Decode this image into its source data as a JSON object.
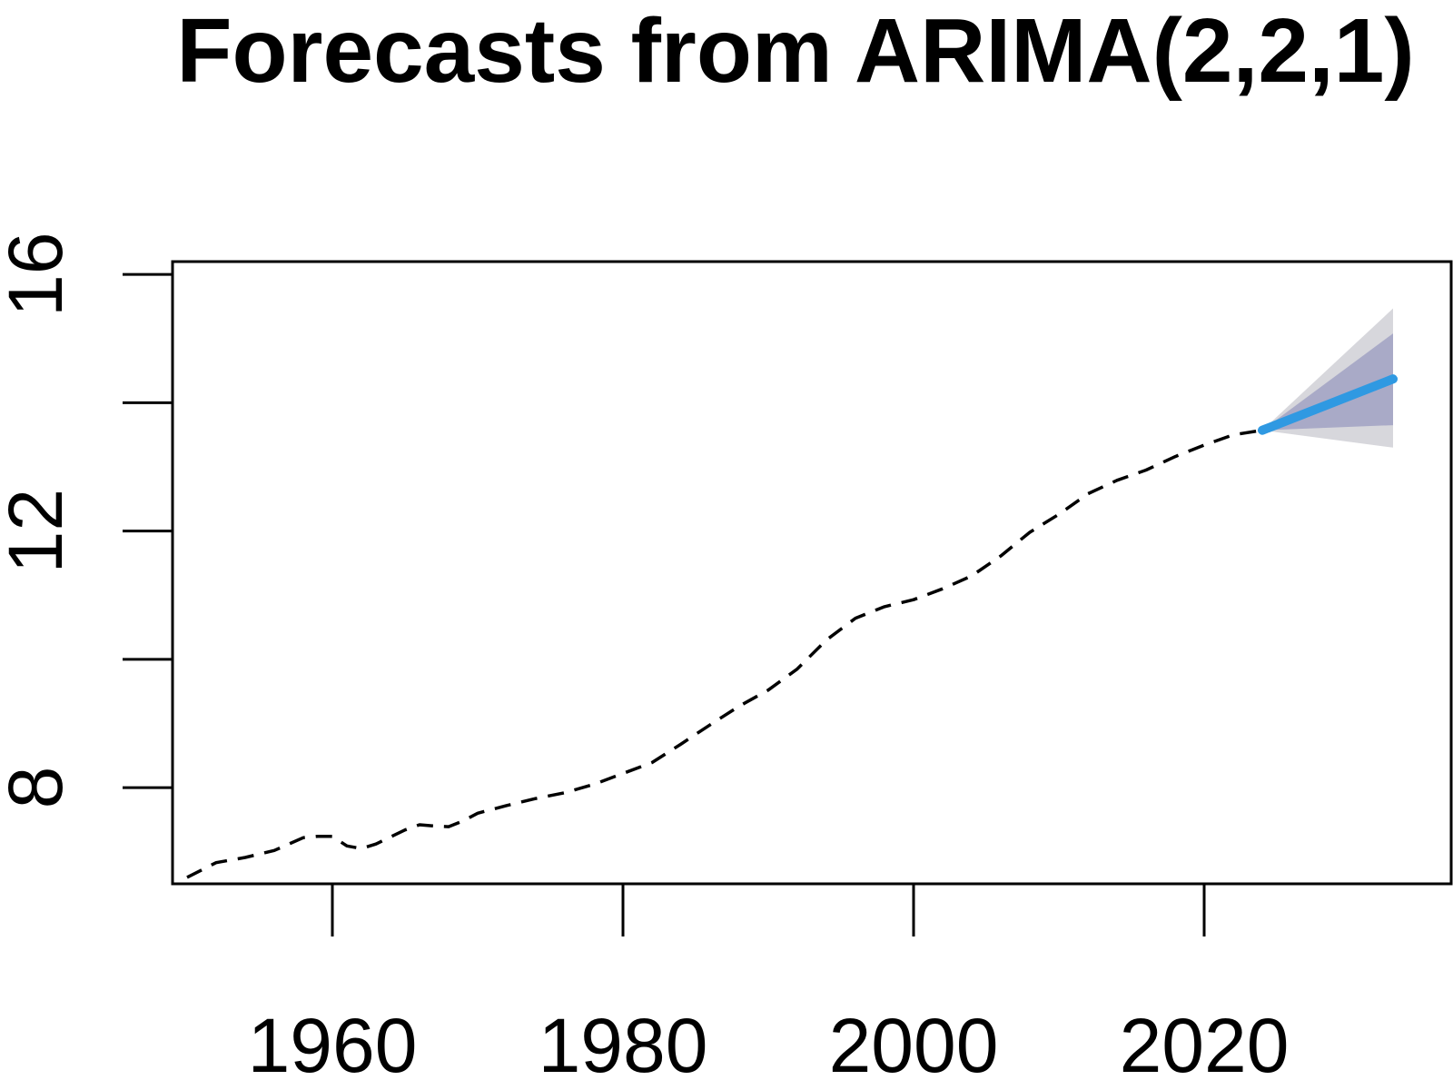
{
  "chart_data": {
    "type": "line",
    "title": "Forecasts from ARIMA(2,2,1)",
    "xlabel": "",
    "ylabel": "",
    "xlim": [
      1949,
      2037
    ],
    "ylim": [
      6.5,
      16.2
    ],
    "x_ticks": [
      1960,
      1980,
      2000,
      2020
    ],
    "y_ticks": [
      8,
      10,
      12,
      14,
      16
    ],
    "y_tick_labels": [
      {
        "value": 8,
        "label": "8"
      },
      {
        "value": 12,
        "label": "12"
      },
      {
        "value": 16,
        "label": "16"
      }
    ],
    "x_tick_labels": [
      {
        "value": 1960,
        "label": "1960"
      },
      {
        "value": 1980,
        "label": "1980"
      },
      {
        "value": 2000,
        "label": "2000"
      },
      {
        "value": 2020,
        "label": "2020"
      }
    ],
    "grid": false,
    "colors": {
      "history": "#000000",
      "forecast": "#2f99e2",
      "band80": "#a9aac7",
      "band95": "#d7d7dc",
      "axis": "#000000"
    },
    "series": [
      {
        "name": "history",
        "style": "dashed",
        "x": [
          1950,
          1952,
          1954,
          1956,
          1958,
          1959,
          1960,
          1961,
          1962,
          1963,
          1964,
          1965,
          1966,
          1967,
          1968,
          1969,
          1970,
          1972,
          1974,
          1976,
          1978,
          1980,
          1982,
          1984,
          1986,
          1988,
          1990,
          1992,
          1994,
          1996,
          1998,
          2000,
          2002,
          2004,
          2006,
          2008,
          2010,
          2012,
          2014,
          2016,
          2018,
          2020,
          2022,
          2024
        ],
        "values": [
          6.6,
          6.83,
          6.91,
          7.02,
          7.22,
          7.24,
          7.24,
          7.09,
          7.05,
          7.12,
          7.23,
          7.34,
          7.42,
          7.4,
          7.39,
          7.48,
          7.6,
          7.72,
          7.83,
          7.92,
          8.05,
          8.22,
          8.39,
          8.68,
          8.98,
          9.27,
          9.52,
          9.85,
          10.3,
          10.64,
          10.82,
          10.93,
          11.1,
          11.3,
          11.61,
          11.98,
          12.26,
          12.58,
          12.79,
          12.95,
          13.16,
          13.34,
          13.5,
          13.57
        ]
      },
      {
        "name": "forecast",
        "style": "solid",
        "x": [
          2024,
          2033
        ],
        "values": [
          13.57,
          14.37
        ]
      }
    ],
    "intervals": [
      {
        "name": "95%",
        "x": [
          2024,
          2033
        ],
        "lower": [
          13.57,
          13.3
        ],
        "upper": [
          13.57,
          15.47
        ]
      },
      {
        "name": "80%",
        "x": [
          2024,
          2033
        ],
        "lower": [
          13.57,
          13.65
        ],
        "upper": [
          13.57,
          15.08
        ]
      }
    ]
  }
}
